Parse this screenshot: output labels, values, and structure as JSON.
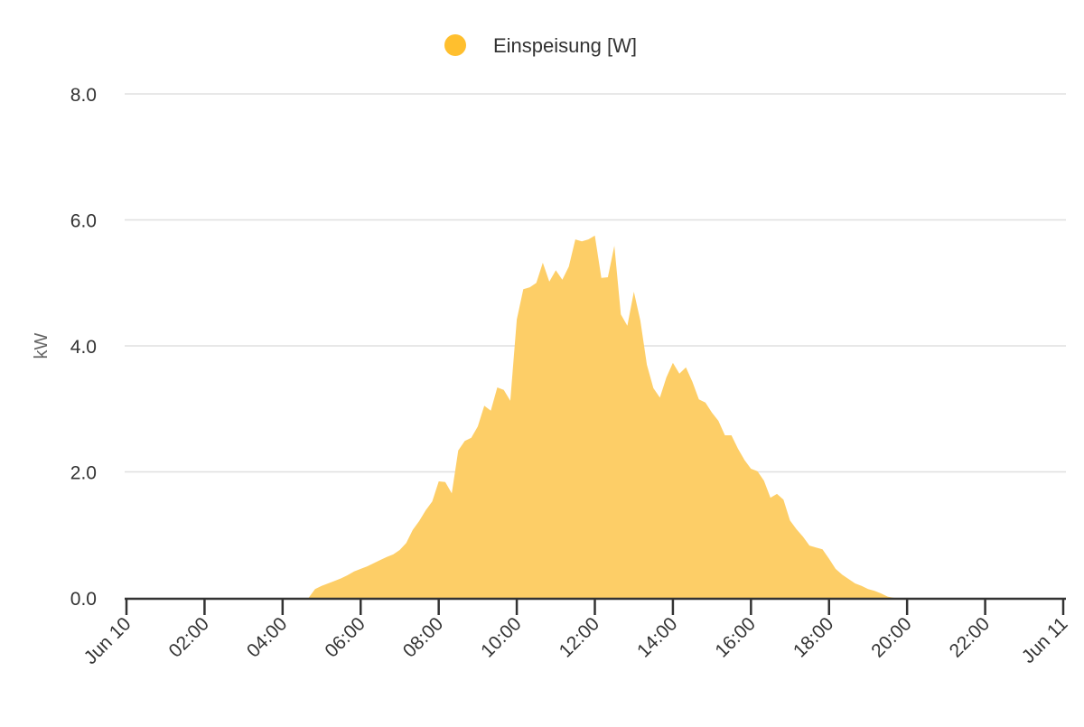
{
  "chart_data": {
    "type": "area",
    "title": "",
    "xlabel": "",
    "ylabel": "kW",
    "ylim": [
      0,
      8
    ],
    "yticks": [
      "0.0",
      "2.0",
      "4.0",
      "6.0",
      "8.0"
    ],
    "xlim": [
      "Jun 10 00:00",
      "Jun 11 00:00"
    ],
    "xticks": [
      "Jun 10",
      "02:00",
      "04:00",
      "06:00",
      "08:00",
      "10:00",
      "12:00",
      "14:00",
      "16:00",
      "18:00",
      "20:00",
      "22:00",
      "Jun 11"
    ],
    "grid": true,
    "legend": {
      "placement": "top-center",
      "entries": [
        "Einspeisung [W]"
      ]
    },
    "colors": {
      "series": "#FFBF2E",
      "fill": "#FDCE67",
      "grid": "#E0E0E0",
      "axis": "#333333"
    },
    "series": [
      {
        "name": "Einspeisung [W]",
        "x": [
          "04:40",
          "04:50",
          "05:00",
          "05:10",
          "05:20",
          "05:30",
          "05:40",
          "05:50",
          "06:00",
          "06:10",
          "06:20",
          "06:30",
          "06:40",
          "06:50",
          "07:00",
          "07:10",
          "07:20",
          "07:30",
          "07:40",
          "07:50",
          "08:00",
          "08:10",
          "08:20",
          "08:30",
          "08:40",
          "08:50",
          "09:00",
          "09:10",
          "09:20",
          "09:30",
          "09:40",
          "09:50",
          "10:00",
          "10:10",
          "10:20",
          "10:30",
          "10:40",
          "10:50",
          "11:00",
          "11:10",
          "11:20",
          "11:30",
          "11:40",
          "11:50",
          "12:00",
          "12:10",
          "12:20",
          "12:30",
          "12:40",
          "12:50",
          "13:00",
          "13:10",
          "13:20",
          "13:30",
          "13:40",
          "13:50",
          "14:00",
          "14:10",
          "14:20",
          "14:30",
          "14:40",
          "14:50",
          "15:00",
          "15:10",
          "15:20",
          "15:30",
          "15:40",
          "15:50",
          "16:00",
          "16:10",
          "16:20",
          "16:30",
          "16:40",
          "16:50",
          "17:00",
          "17:10",
          "17:20",
          "17:30",
          "17:40",
          "17:50",
          "18:00",
          "18:10",
          "18:20",
          "18:30",
          "18:40",
          "18:50",
          "19:00",
          "19:10",
          "19:20",
          "19:30",
          "19:40"
        ],
        "values": [
          0,
          0.14,
          0.19,
          0.23,
          0.27,
          0.31,
          0.36,
          0.42,
          0.46,
          0.5,
          0.55,
          0.6,
          0.65,
          0.69,
          0.76,
          0.87,
          1.08,
          1.22,
          1.39,
          1.53,
          1.85,
          1.84,
          1.66,
          2.34,
          2.49,
          2.54,
          2.72,
          3.05,
          2.97,
          3.34,
          3.3,
          3.13,
          4.42,
          4.9,
          4.93,
          5.0,
          5.32,
          5.02,
          5.2,
          5.05,
          5.26,
          5.69,
          5.66,
          5.69,
          5.75,
          5.08,
          5.09,
          5.59,
          4.5,
          4.32,
          4.86,
          4.4,
          3.7,
          3.33,
          3.18,
          3.5,
          3.73,
          3.56,
          3.66,
          3.43,
          3.15,
          3.1,
          2.94,
          2.81,
          2.58,
          2.58,
          2.37,
          2.19,
          2.05,
          2.01,
          1.86,
          1.59,
          1.65,
          1.56,
          1.23,
          1.09,
          0.97,
          0.83,
          0.8,
          0.77,
          0.62,
          0.46,
          0.37,
          0.3,
          0.23,
          0.19,
          0.14,
          0.11,
          0.07,
          0.02,
          0
        ]
      }
    ]
  }
}
